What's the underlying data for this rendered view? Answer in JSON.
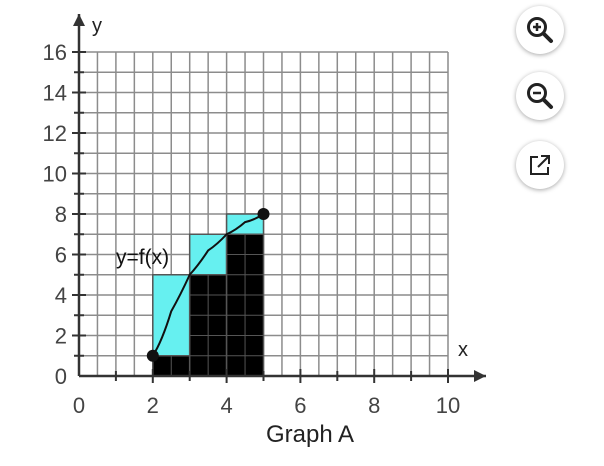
{
  "chart_data": {
    "type": "area",
    "title": "Graph A",
    "xlabel": "x",
    "ylabel": "y",
    "xlim": [
      0,
      10
    ],
    "ylim": [
      0,
      16
    ],
    "grid": true,
    "x_major_ticks": [
      0,
      2,
      4,
      6,
      8,
      10
    ],
    "y_major_ticks": [
      0,
      2,
      4,
      6,
      8,
      10,
      12,
      14,
      16
    ],
    "curve": {
      "label": "y=f(x)",
      "x": [
        2,
        2.5,
        3,
        3.5,
        4,
        4.5,
        5
      ],
      "y": [
        1,
        3.2,
        5.0,
        6.2,
        7.0,
        7.6,
        8.0
      ]
    },
    "endpoints": [
      {
        "x": 2,
        "y": 1
      },
      {
        "x": 5,
        "y": 8
      }
    ],
    "rectangles": [
      {
        "x0": 2,
        "x1": 3,
        "inner": 1,
        "outer": 5
      },
      {
        "x0": 3,
        "x1": 4,
        "inner": 5,
        "outer": 7
      },
      {
        "x0": 4,
        "x1": 5,
        "inner": 7,
        "outer": 8
      }
    ],
    "colors": {
      "inner": "#000000",
      "outer": "#66f0f0",
      "grid": "#8c8c8c",
      "axis": "#333333"
    }
  },
  "toolbar": {
    "zoom_in_icon": "zoom-in-icon",
    "zoom_out_icon": "zoom-out-icon",
    "external_icon": "external-link-icon"
  }
}
